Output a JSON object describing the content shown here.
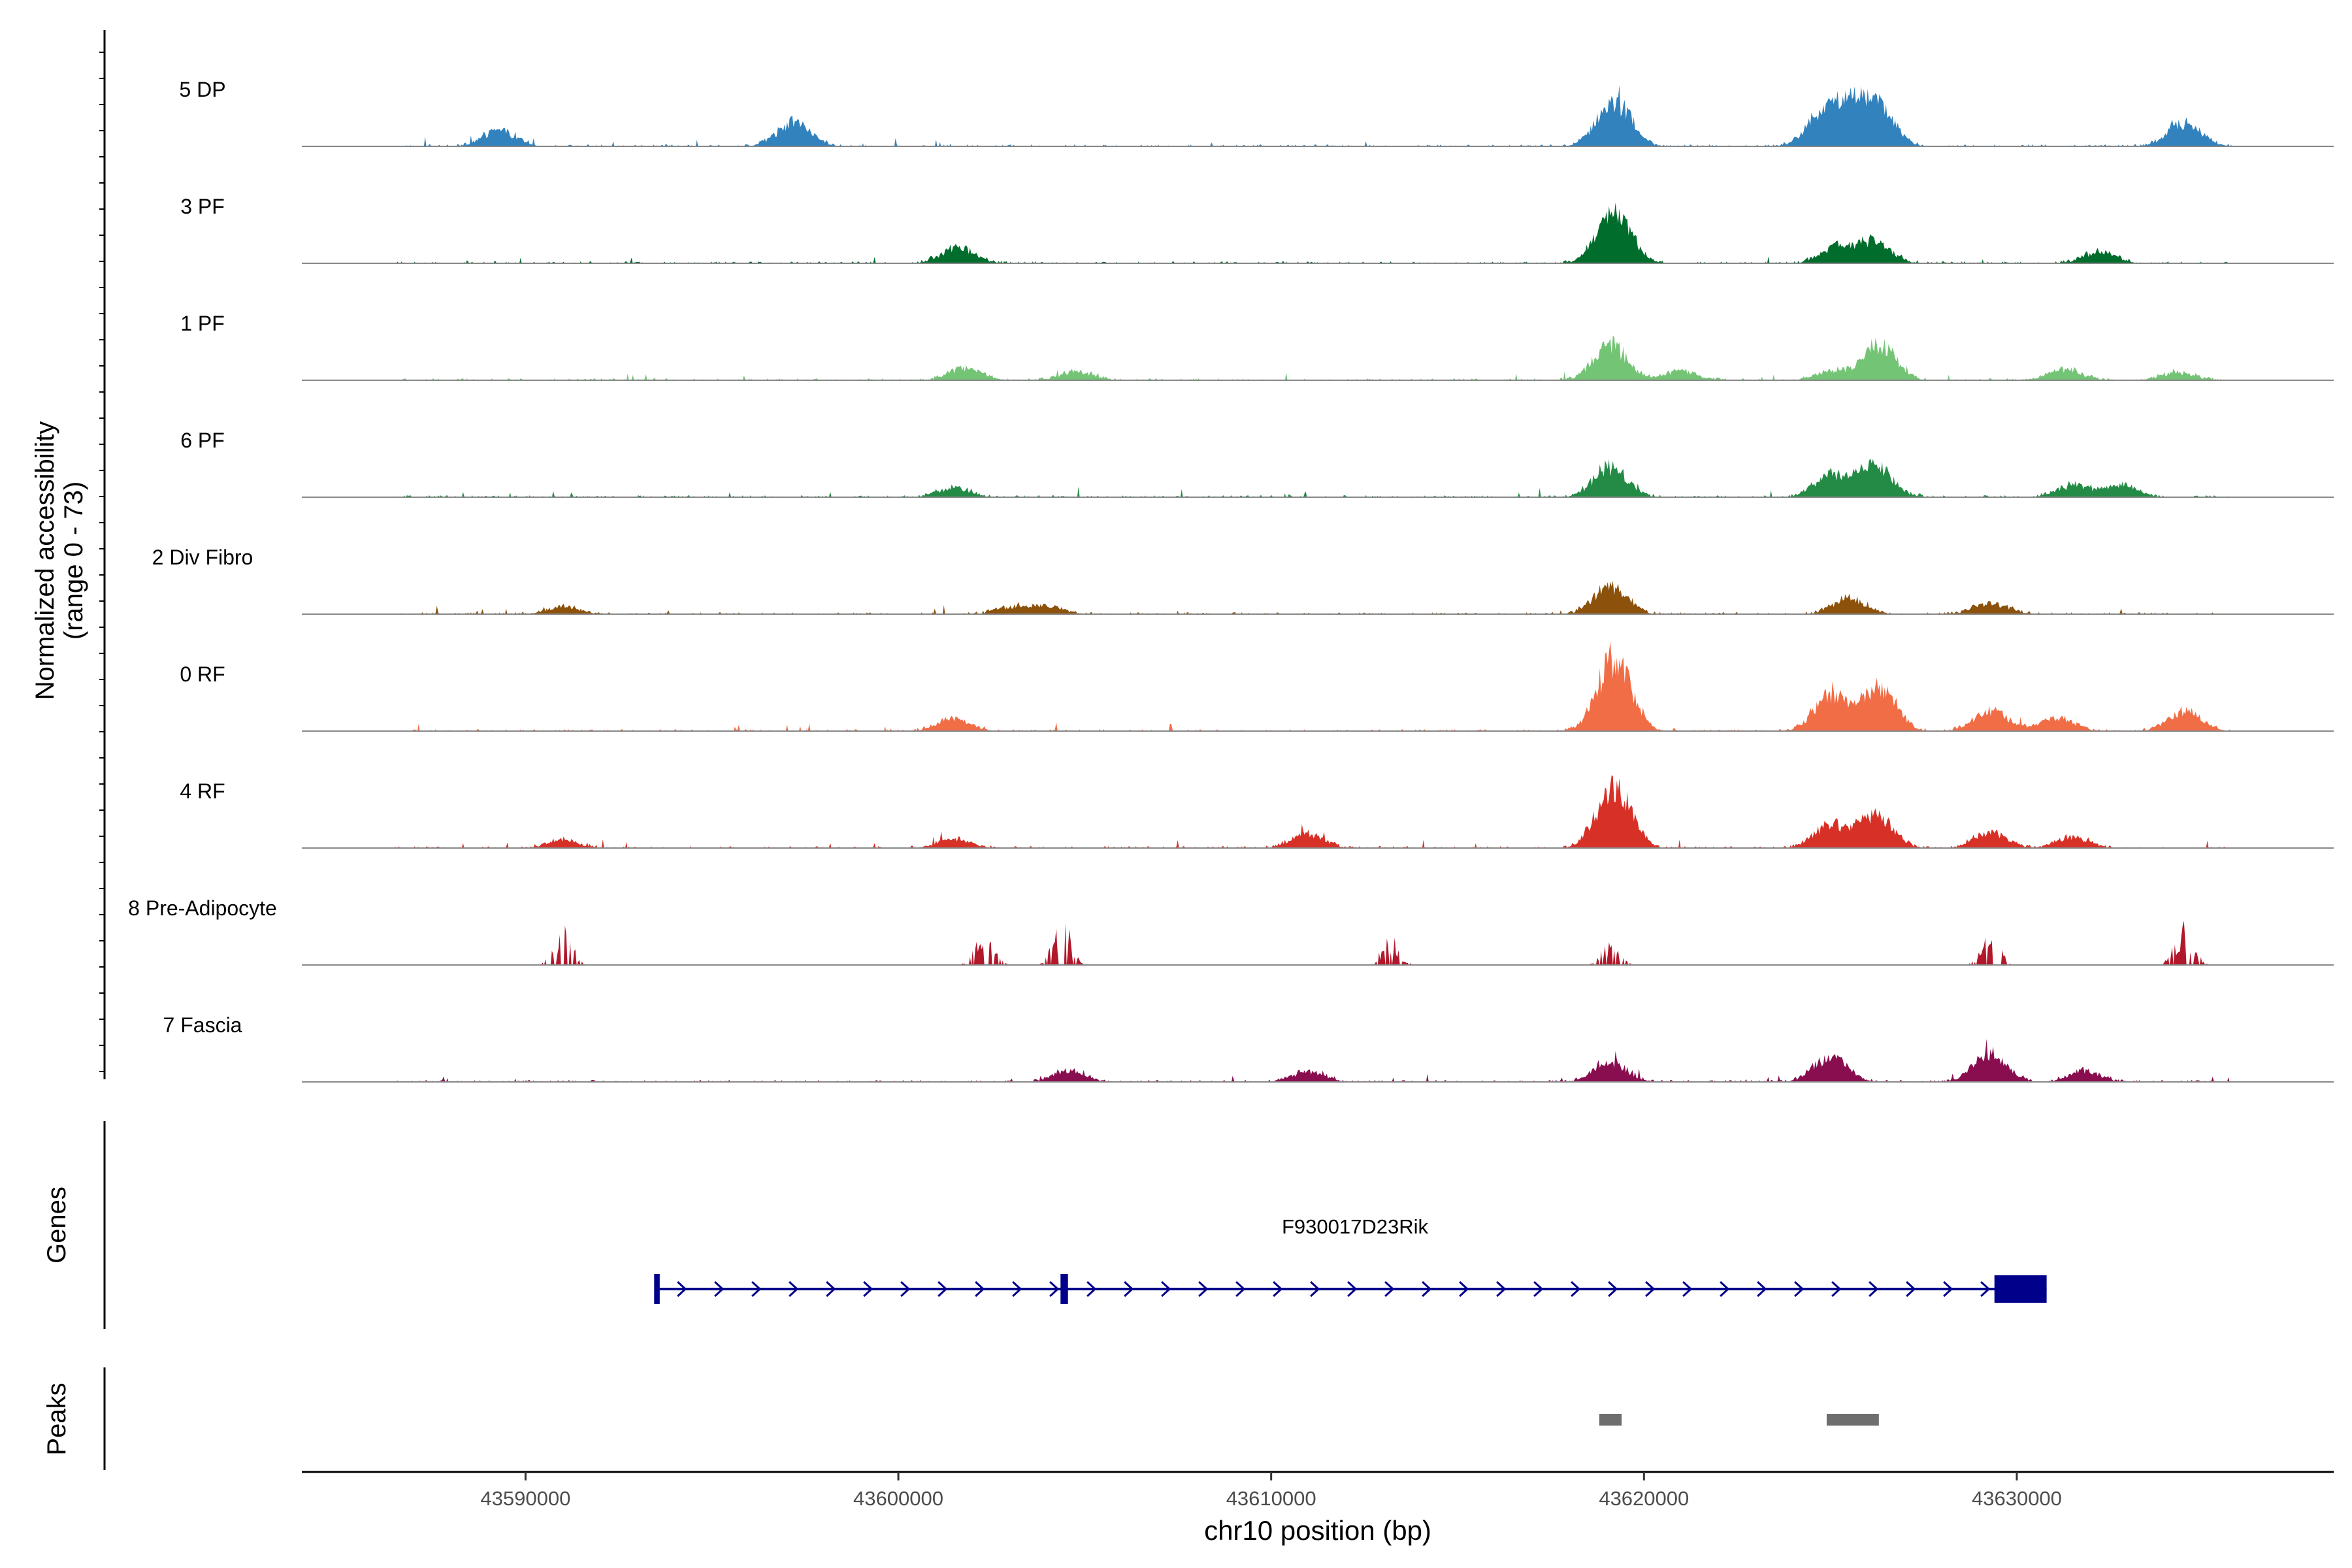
{
  "chart_data": {
    "type": "area",
    "title": "",
    "ylabel_line1": "Normalized accessibility",
    "ylabel_line2": "(range 0 - 73)",
    "y_range": [
      0,
      73
    ],
    "xlabel": "chr10 position (bp)",
    "xlim": [
      43584000,
      43638500
    ],
    "x_ticks": [
      43590000,
      43600000,
      43610000,
      43620000,
      43630000
    ],
    "x_tick_labels": [
      "43590000",
      "43600000",
      "43610000",
      "43620000",
      "43630000"
    ],
    "coverage_range": [
      43586500,
      43635800
    ],
    "tracks": [
      {
        "name": "5 DP",
        "color": "#3182bd",
        "peaks": [
          [
            43589300,
            14
          ],
          [
            43597200,
            21
          ],
          [
            43619200,
            40
          ],
          [
            43624800,
            28
          ],
          [
            43625600,
            30
          ],
          [
            43626300,
            28
          ],
          [
            43634500,
            20
          ]
        ]
      },
      {
        "name": "3 PF",
        "color": "#006d2c",
        "peaks": [
          [
            43601600,
            14
          ],
          [
            43619200,
            45
          ],
          [
            43625200,
            14
          ],
          [
            43626200,
            18
          ],
          [
            43632200,
            10
          ]
        ]
      },
      {
        "name": "1 PF",
        "color": "#74c476",
        "peaks": [
          [
            43601800,
            11
          ],
          [
            43604800,
            8
          ],
          [
            43619100,
            30
          ],
          [
            43621000,
            8
          ],
          [
            43625000,
            8
          ],
          [
            43626300,
            30
          ],
          [
            43631300,
            10
          ],
          [
            43634300,
            7
          ]
        ]
      },
      {
        "name": "6 PF",
        "color": "#238b45",
        "peaks": [
          [
            43601500,
            8
          ],
          [
            43619100,
            26
          ],
          [
            43625000,
            18
          ],
          [
            43626200,
            28
          ],
          [
            43631500,
            10
          ],
          [
            43632800,
            11
          ]
        ]
      },
      {
        "name": "2 Div Fibro",
        "color": "#8c510a",
        "peaks": [
          [
            43591000,
            7
          ],
          [
            43603000,
            6
          ],
          [
            43604000,
            7
          ],
          [
            43619100,
            24
          ],
          [
            43625500,
            14
          ],
          [
            43629300,
            10
          ]
        ]
      },
      {
        "name": "0 RF",
        "color": "#f16d46",
        "peaks": [
          [
            43601500,
            11
          ],
          [
            43619200,
            61
          ],
          [
            43625000,
            30
          ],
          [
            43626300,
            38
          ],
          [
            43629300,
            18
          ],
          [
            43631100,
            12
          ],
          [
            43634500,
            17
          ]
        ]
      },
      {
        "name": "4 RF",
        "color": "#d73027",
        "peaks": [
          [
            43591000,
            7
          ],
          [
            43601500,
            8
          ],
          [
            43611000,
            12
          ],
          [
            43619200,
            55
          ],
          [
            43625000,
            20
          ],
          [
            43626200,
            28
          ],
          [
            43629300,
            14
          ],
          [
            43631500,
            10
          ]
        ]
      },
      {
        "name": "8 Pre-Adipocyte",
        "color": "#b2182b",
        "peaks": [
          [
            43591000,
            28
          ],
          [
            43602300,
            28
          ],
          [
            43604400,
            33
          ],
          [
            43613200,
            22
          ],
          [
            43619100,
            18
          ],
          [
            43629300,
            28
          ],
          [
            43634500,
            35
          ]
        ]
      },
      {
        "name": "7 Fascia",
        "color": "#880e4f",
        "peaks": [
          [
            43604600,
            10
          ],
          [
            43611000,
            9
          ],
          [
            43619100,
            17
          ],
          [
            43625000,
            22
          ],
          [
            43629300,
            26
          ],
          [
            43631800,
            10
          ]
        ]
      }
    ],
    "genes_label": "Genes",
    "gene": {
      "name": "F930017D23Rik",
      "color": "#00008b",
      "start": 43593500,
      "end": 43630800,
      "exons": [
        [
          43593450,
          43593600
        ],
        [
          43604350,
          43604550
        ],
        [
          43629400,
          43630800
        ]
      ]
    },
    "peaks_label": "Peaks",
    "peak_color": "#6e6e6e",
    "peak_regions": [
      [
        43618800,
        43619400
      ],
      [
        43624900,
        43626300
      ]
    ]
  }
}
